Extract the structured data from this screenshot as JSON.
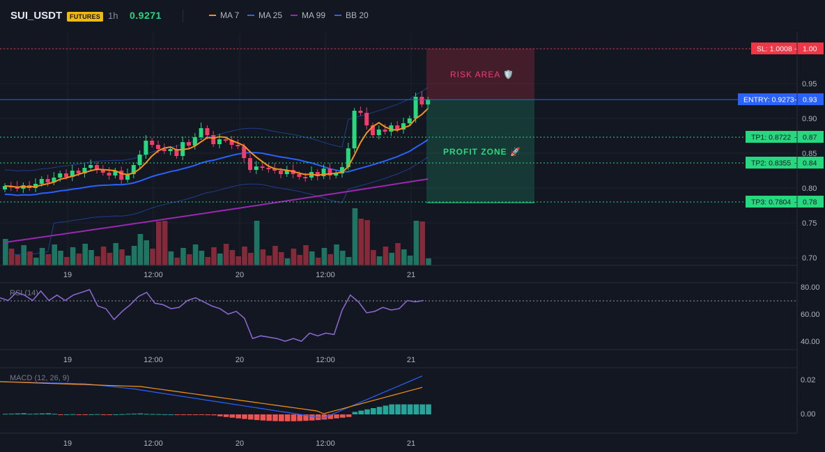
{
  "header": {
    "symbol": "SUI_USDT",
    "badge": "FUTURES",
    "timeframe": "1h",
    "price": "0.9271",
    "legend": [
      {
        "label": "MA 7",
        "color": "#f7931a"
      },
      {
        "label": "MA 25",
        "color": "#2962ff"
      },
      {
        "label": "MA 99",
        "color": "#9c27b0"
      },
      {
        "label": "BB 20",
        "color": "#1e3f8a"
      }
    ]
  },
  "price_axis": {
    "ticks": [
      "1.00",
      "0.95",
      "0.90",
      "0.85",
      "0.80",
      "0.75",
      "0.70"
    ]
  },
  "time_axis": {
    "ticks": [
      "19",
      "12:00",
      "20",
      "12:00",
      "21"
    ]
  },
  "levels": {
    "sl": {
      "label": "SL: 1.0008",
      "value": "1.00",
      "color": "#f23645"
    },
    "entry": {
      "label": "ENTRY: 0.9273",
      "value": "0.93",
      "color": "#2962ff"
    },
    "tp1": {
      "label": "TP1: 0.8722",
      "value": "0.87",
      "color": "#26d97f"
    },
    "tp2": {
      "label": "TP2: 0.8355",
      "value": "0.84",
      "color": "#26d97f"
    },
    "tp3": {
      "label": "TP3: 0.7804",
      "value": "0.78",
      "color": "#26d97f"
    }
  },
  "zones": {
    "risk": "RISK AREA 🛡️",
    "profit": "PROFIT ZONE 🚀"
  },
  "rsi": {
    "label": "RSI (14)",
    "ticks": [
      "80.00",
      "60.00",
      "40.00"
    ]
  },
  "macd": {
    "label": "MACD (12, 26, 9)",
    "ticks": [
      "0.02",
      "0.00"
    ]
  },
  "chart_data": {
    "type": "candlestick",
    "x_range": [
      "19",
      "21"
    ],
    "y_range": [
      0.69,
      1.01
    ],
    "close": [
      0.803,
      0.802,
      0.799,
      0.804,
      0.8,
      0.806,
      0.813,
      0.808,
      0.815,
      0.821,
      0.816,
      0.825,
      0.821,
      0.829,
      0.833,
      0.827,
      0.822,
      0.818,
      0.825,
      0.812,
      0.82,
      0.833,
      0.848,
      0.868,
      0.862,
      0.856,
      0.853,
      0.856,
      0.846,
      0.866,
      0.861,
      0.873,
      0.886,
      0.876,
      0.863,
      0.87,
      0.869,
      0.862,
      0.86,
      0.843,
      0.826,
      0.831,
      0.829,
      0.828,
      0.825,
      0.82,
      0.826,
      0.82,
      0.816,
      0.815,
      0.823,
      0.817,
      0.828,
      0.818,
      0.821,
      0.83,
      0.857,
      0.911,
      0.908,
      0.89,
      0.876,
      0.884,
      0.881,
      0.89,
      0.884,
      0.893,
      0.9,
      0.931,
      0.92,
      0.927
    ],
    "rsi": [
      72,
      70,
      76,
      74,
      70,
      77,
      70,
      74,
      70,
      74,
      76,
      78,
      66,
      64,
      56,
      62,
      67,
      73,
      76,
      68,
      67,
      64,
      65,
      70,
      72,
      69,
      66,
      64,
      60,
      62,
      57,
      42,
      44,
      43,
      42,
      40,
      42,
      40,
      46,
      44,
      46,
      45,
      63,
      74,
      69,
      61,
      62,
      65,
      63,
      64,
      70,
      69,
      70
    ],
    "macd_hist_note": "negative bars 20→00, positive after 12:00 (21)",
    "volume_note": "teal/red bars per candle"
  }
}
